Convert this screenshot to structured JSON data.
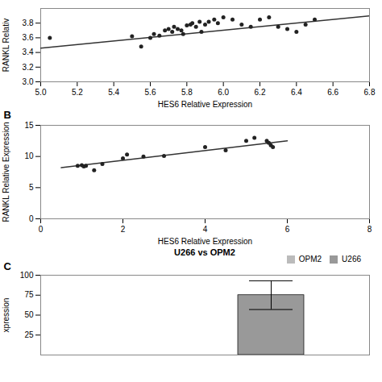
{
  "chart_data": [
    {
      "type": "scatter",
      "xlabel": "HES6 Relative Expression",
      "ylabel": "RANKL Relativ",
      "x": [
        5.05,
        5.5,
        5.55,
        5.6,
        5.62,
        5.65,
        5.68,
        5.7,
        5.72,
        5.73,
        5.75,
        5.77,
        5.78,
        5.8,
        5.82,
        5.83,
        5.85,
        5.87,
        5.88,
        5.9,
        5.92,
        5.95,
        5.97,
        6.0,
        6.05,
        6.1,
        6.15,
        6.2,
        6.25,
        6.3,
        6.35,
        6.4,
        6.45,
        6.5
      ],
      "values": [
        3.6,
        3.62,
        3.48,
        3.6,
        3.65,
        3.63,
        3.7,
        3.72,
        3.68,
        3.75,
        3.72,
        3.7,
        3.65,
        3.77,
        3.78,
        3.8,
        3.75,
        3.82,
        3.68,
        3.78,
        3.82,
        3.85,
        3.8,
        3.88,
        3.85,
        3.78,
        3.75,
        3.85,
        3.88,
        3.75,
        3.72,
        3.68,
        3.78,
        3.85
      ],
      "color": "#222222",
      "trendline": {
        "type": "line",
        "x": [
          5.0,
          6.8
        ],
        "values": [
          3.46,
          3.9
        ],
        "color": "#333333"
      },
      "xlim": [
        5.0,
        6.8
      ],
      "ylim": [
        3.0,
        4.0
      ],
      "xticks": [
        {
          "value": 5.0,
          "label": "5.0"
        },
        5.2,
        5.4,
        5.6,
        5.8,
        {
          "value": 6.0,
          "label": "6.0"
        },
        6.2,
        6.4,
        6.6,
        6.8
      ],
      "yticks": [
        {
          "value": 3.0,
          "label": "3.0"
        },
        3.2,
        3.4,
        3.6,
        3.8
      ]
    },
    {
      "type": "scatter",
      "annotations": [
        "B"
      ],
      "xlabel": "HES6 Relative Expression",
      "ylabel": "RANKL Relative Expression",
      "x": [
        0.9,
        1.0,
        1.05,
        1.1,
        1.3,
        1.5,
        2.0,
        2.1,
        2.5,
        3.0,
        4.0,
        4.5,
        5.0,
        5.2,
        5.5,
        5.55,
        5.6,
        5.65
      ],
      "values": [
        8.5,
        8.6,
        8.4,
        8.5,
        7.8,
        8.8,
        9.7,
        10.3,
        10.0,
        10.1,
        11.5,
        11.0,
        12.5,
        13.0,
        12.5,
        12.2,
        11.8,
        11.5
      ],
      "color": "#222222",
      "trendline": {
        "type": "line",
        "x": [
          0.5,
          6.0
        ],
        "values": [
          8.2,
          12.5
        ],
        "color": "#333333"
      },
      "xlim": [
        0,
        8
      ],
      "ylim": [
        0,
        15
      ],
      "xticks": [
        0,
        2,
        4,
        6,
        8
      ],
      "yticks": [
        0,
        5,
        10,
        15
      ]
    },
    {
      "type": "bar",
      "title": "U266 vs OPM2",
      "annotations": [
        "C"
      ],
      "ylabel": "xpression",
      "categories": [
        "OPM2",
        "U266"
      ],
      "values": [
        0,
        75
      ],
      "errors": [
        0,
        18
      ],
      "colors": [
        "#bbbbbb",
        "#999999"
      ],
      "ylim": [
        0,
        100
      ],
      "yticks": [
        25,
        50,
        75,
        100
      ],
      "legend": "upper right",
      "tick_labels": "y"
    }
  ]
}
